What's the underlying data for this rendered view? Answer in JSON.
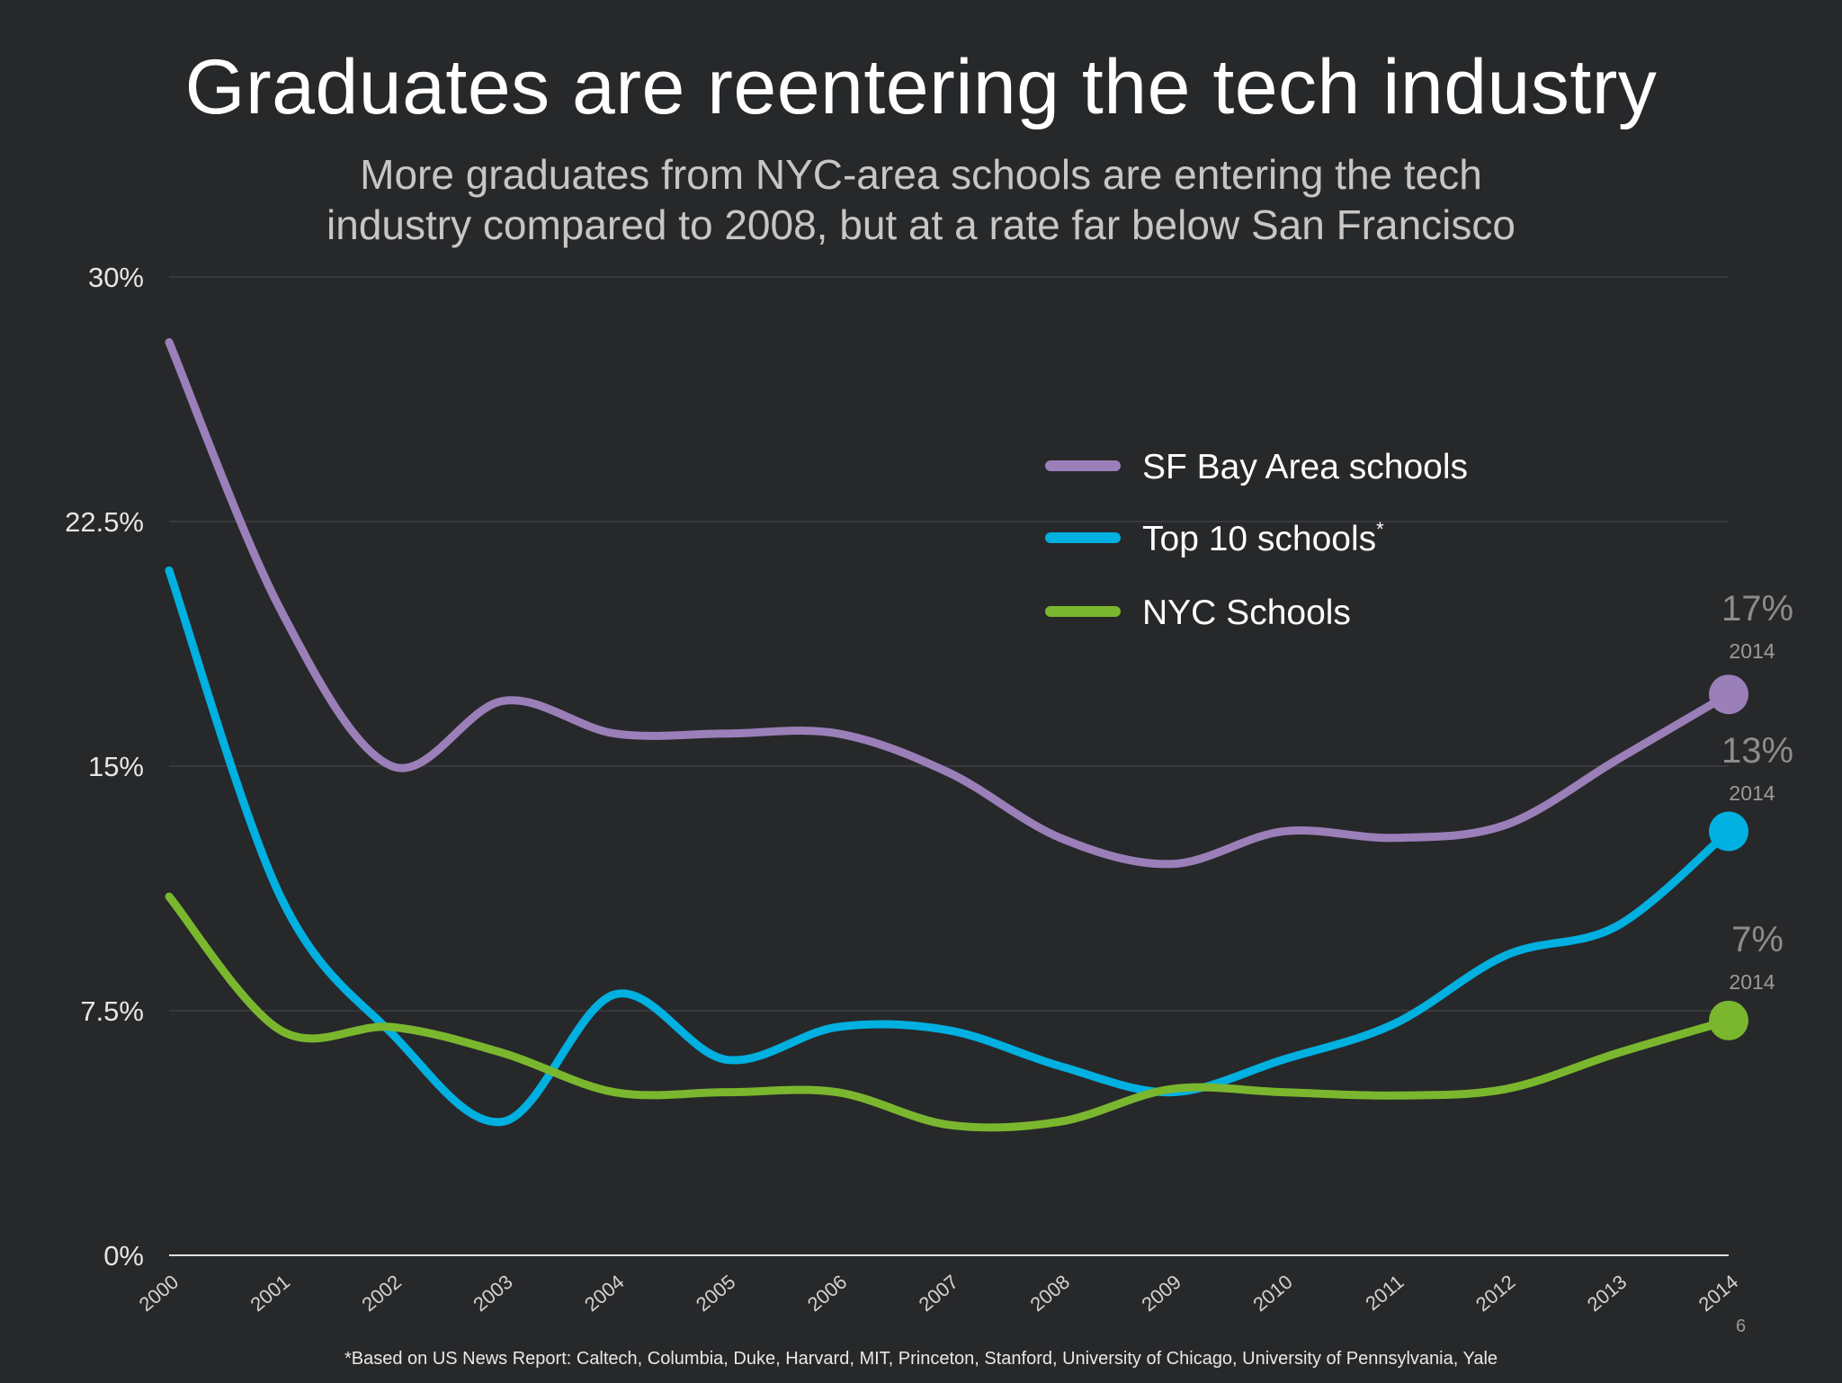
{
  "title": "Graduates are reentering the tech industry",
  "subtitle_line1": "More graduates from NYC-area schools are entering the tech",
  "subtitle_line2": "industry compared to 2008, but at a rate far below San Francisco",
  "footnote": "*Based on US News Report: Caltech, Columbia, Duke, Harvard, MIT, Princeton, Stanford, University of Chicago, University of Pennsylvania, Yale",
  "page_number": "6",
  "chart_data": {
    "type": "line",
    "x": [
      "2000",
      "2001",
      "2002",
      "2003",
      "2004",
      "2005",
      "2006",
      "2007",
      "2008",
      "2009",
      "2010",
      "2011",
      "2012",
      "2013",
      "2014"
    ],
    "ylim": [
      0,
      30
    ],
    "yticks": [
      0,
      7.5,
      15,
      22.5,
      30
    ],
    "ytick_labels": [
      "0%",
      "7.5%",
      "15%",
      "22.5%",
      "30%"
    ],
    "grid": true,
    "legend_position": "upper-right",
    "series": [
      {
        "name": "SF Bay Area schools",
        "color": "#9b7fb9",
        "values": [
          28,
          19.8,
          15,
          17,
          16,
          16,
          16,
          14.8,
          12.8,
          12,
          13,
          12.8,
          13.2,
          15.2,
          17.2
        ],
        "end_label": "17%",
        "end_year": "2014"
      },
      {
        "name": "Top 10 schools",
        "name_suffix": "*",
        "color": "#00b0e0",
        "values": [
          21,
          11,
          6.8,
          4.1,
          8,
          6,
          7,
          6.9,
          5.8,
          5,
          6,
          7.1,
          9.2,
          10.1,
          13
        ],
        "end_label": "13%",
        "end_year": "2014"
      },
      {
        "name": "NYC Schools",
        "color": "#7ab72e",
        "values": [
          11,
          6.9,
          7,
          6.2,
          5,
          5,
          5,
          4,
          4.1,
          5.1,
          5,
          4.9,
          5.1,
          6.2,
          7.2
        ],
        "end_label": "7%",
        "end_year": "2014"
      }
    ]
  }
}
